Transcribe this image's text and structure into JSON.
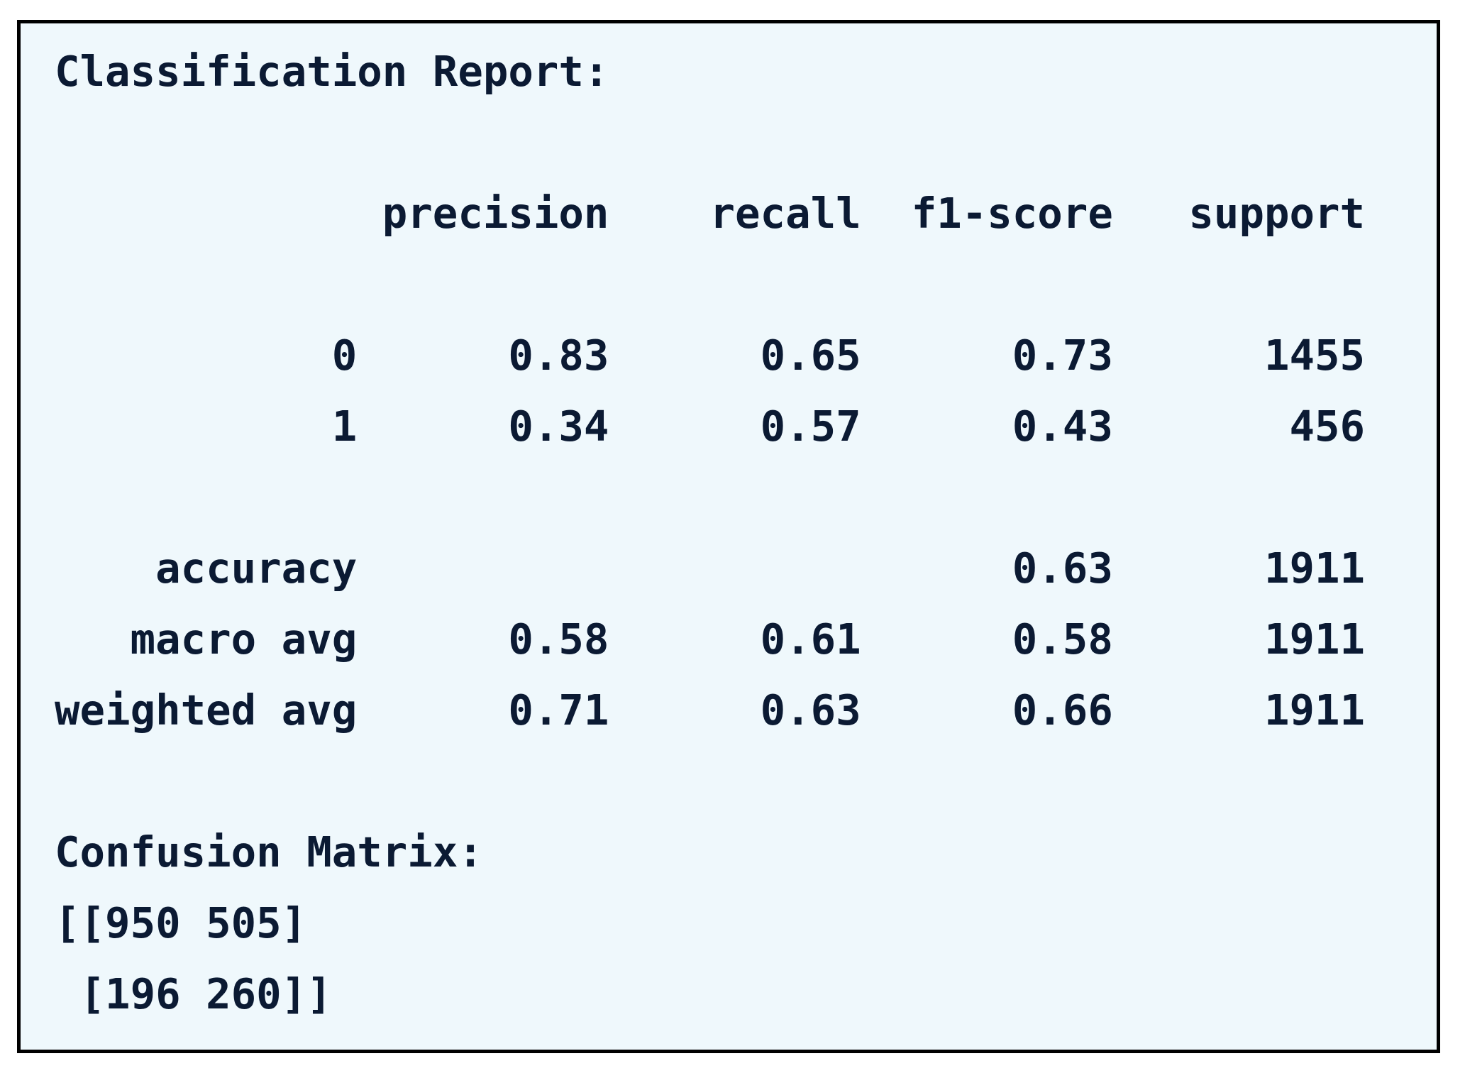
{
  "report": {
    "title": "Classification Report:",
    "headers": [
      "precision",
      "recall",
      "f1-score",
      "support"
    ],
    "rows": [
      {
        "label": "0",
        "values": [
          "0.83",
          "0.65",
          "0.73",
          "1455"
        ]
      },
      {
        "label": "1",
        "values": [
          "0.34",
          "0.57",
          "0.43",
          "456"
        ]
      }
    ],
    "summary": [
      {
        "label": "accuracy",
        "values": [
          "",
          "",
          "0.63",
          "1911"
        ]
      },
      {
        "label": "macro avg",
        "values": [
          "0.58",
          "0.61",
          "0.58",
          "1911"
        ]
      },
      {
        "label": "weighted avg",
        "values": [
          "0.71",
          "0.63",
          "0.66",
          "1911"
        ]
      }
    ]
  },
  "confusion": {
    "title": "Confusion Matrix:",
    "lines": [
      "[[950 505]",
      " [196 260]]"
    ]
  },
  "colors": {
    "background": "#eff8fc",
    "text": "#0b1a33",
    "border": "#000000"
  }
}
